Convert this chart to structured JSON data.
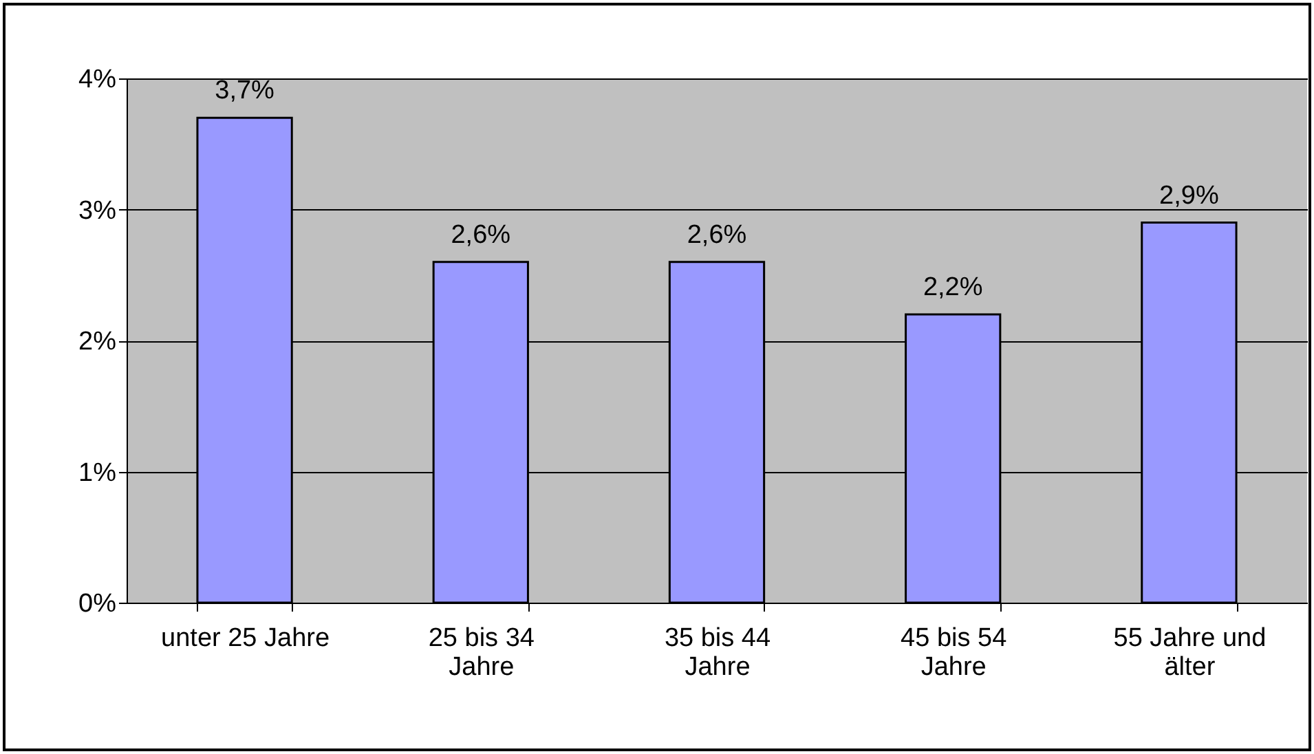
{
  "chart_data": {
    "type": "bar",
    "categories": [
      "unter 25 Jahre",
      "25 bis 34 Jahre",
      "35 bis 44 Jahre",
      "45 bis 54 Jahre",
      "55 Jahre und älter"
    ],
    "values": [
      3.7,
      2.6,
      2.6,
      2.2,
      2.9
    ],
    "value_labels": [
      "3,7%",
      "2,6%",
      "2,6%",
      "2,2%",
      "2,9%"
    ],
    "color": "#9999ff",
    "ylim": [
      0,
      4
    ],
    "yticks": [
      {
        "value": 0,
        "label": "0%"
      },
      {
        "value": 1,
        "label": "1%"
      },
      {
        "value": 2,
        "label": "2%"
      },
      {
        "value": 3,
        "label": "3%"
      },
      {
        "value": 4,
        "label": "4%"
      }
    ],
    "grid": "y"
  }
}
